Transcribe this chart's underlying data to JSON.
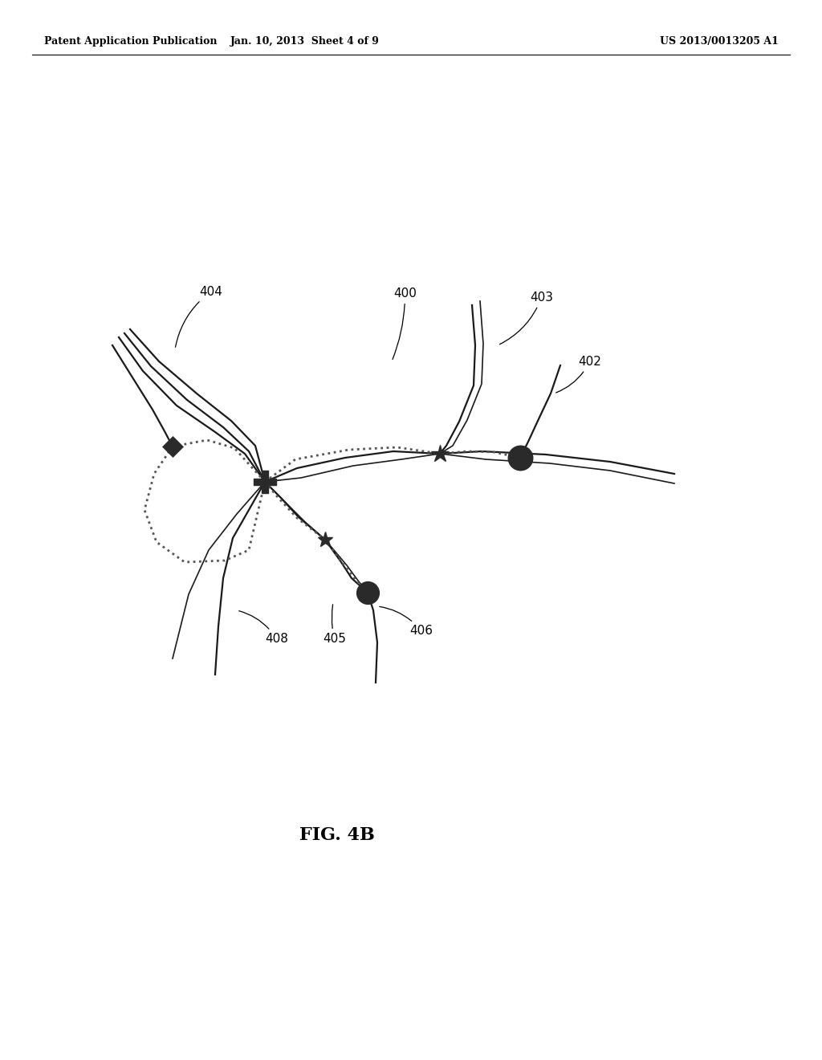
{
  "bg_color": "#ffffff",
  "line_color": "#1a1a1a",
  "dotted_color": "#555555",
  "symbol_color": "#2a2a2a",
  "header_left": "Patent Application Publication",
  "header_mid": "Jan. 10, 2013  Sheet 4 of 9",
  "header_right": "US 2013/0013205 A1",
  "figure_label": "FIG. 4B",
  "header_fontsize": 9,
  "fig_label_fontsize": 16,
  "label_fontsize": 11
}
